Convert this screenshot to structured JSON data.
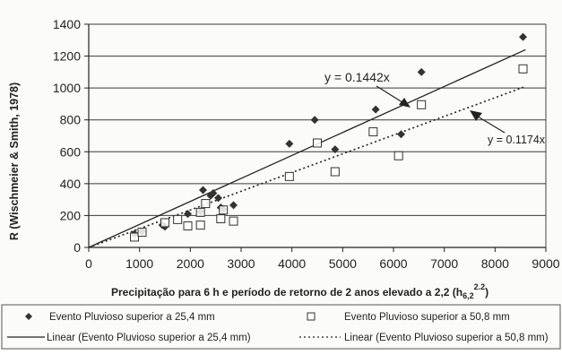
{
  "chart_data": {
    "type": "scatter",
    "xlabel": "Precipitação para 6 h e período de retorno de 2 anos elevado a 2,2 (h",
    "xlabel_sub": "6,2",
    "xlabel_sup": "2.2",
    "xlabel_close": ")",
    "ylabel": "R (Wischmeier & Smith, 1978)",
    "xlim": [
      0,
      9000
    ],
    "ylim": [
      0,
      1400
    ],
    "x_ticks": [
      0,
      1000,
      2000,
      3000,
      4000,
      5000,
      6000,
      7000,
      8000,
      9000
    ],
    "y_ticks": [
      0,
      200,
      400,
      600,
      800,
      1000,
      1200,
      1400
    ],
    "grid": "horizontal",
    "legend_position": "bottom",
    "series": [
      {
        "name": "Evento Pluvioso superior a 25,4 mm",
        "marker": "diamond",
        "points": [
          [
            900,
            85
          ],
          [
            1050,
            100
          ],
          [
            1450,
            140
          ],
          [
            1500,
            130
          ],
          [
            1950,
            210
          ],
          [
            2200,
            225
          ],
          [
            2250,
            360
          ],
          [
            2400,
            325
          ],
          [
            2450,
            340
          ],
          [
            2550,
            310
          ],
          [
            2600,
            250
          ],
          [
            2650,
            240
          ],
          [
            2850,
            265
          ],
          [
            3950,
            650
          ],
          [
            4450,
            800
          ],
          [
            4850,
            615
          ],
          [
            5650,
            865
          ],
          [
            6150,
            710
          ],
          [
            6550,
            1100
          ],
          [
            8550,
            1320
          ]
        ]
      },
      {
        "name": "Evento Pluvioso superior a 50,8 mm",
        "marker": "square",
        "points": [
          [
            900,
            65
          ],
          [
            1050,
            95
          ],
          [
            1500,
            155
          ],
          [
            1750,
            175
          ],
          [
            1950,
            135
          ],
          [
            2200,
            140
          ],
          [
            2200,
            220
          ],
          [
            2300,
            275
          ],
          [
            2600,
            180
          ],
          [
            2650,
            235
          ],
          [
            2850,
            165
          ],
          [
            3950,
            445
          ],
          [
            4500,
            655
          ],
          [
            4850,
            475
          ],
          [
            5600,
            725
          ],
          [
            6100,
            575
          ],
          [
            6550,
            895
          ],
          [
            8550,
            1120
          ]
        ]
      }
    ],
    "trendlines": [
      {
        "name": "Linear (Evento Pluvioso superior a 25,4 mm)",
        "slope": 0.1442,
        "style": "solid",
        "label": "y = 0.1442x"
      },
      {
        "name": "Linear (Evento Pluvioso superior a 50,8 mm)",
        "slope": 0.1174,
        "style": "dotted",
        "label": "y = 0.1174x"
      }
    ]
  },
  "colors": {
    "ink": "#222222",
    "grid": "#3a3a3a",
    "background": "#fbfbf9"
  }
}
